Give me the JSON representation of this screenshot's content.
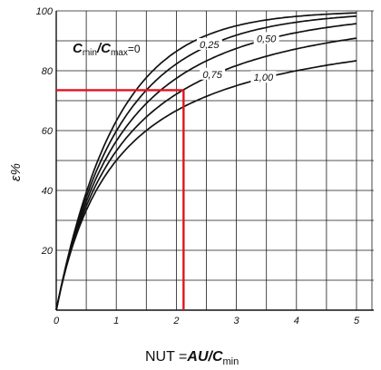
{
  "chart_data": {
    "type": "line",
    "title": "",
    "xlabel": "NUT =AU/C_min",
    "ylabel": "ε%",
    "xlim": [
      0,
      5
    ],
    "ylim": [
      0,
      100
    ],
    "grid": true,
    "x_ticks": [
      "0",
      "1",
      "2",
      "3",
      "4",
      "5"
    ],
    "y_ticks": [
      "20",
      "40",
      "60",
      "80",
      "100"
    ],
    "legend_title": {
      "c1": "C",
      "s1": "min",
      "sep": "/C",
      "s2": "max",
      "eq": "=0"
    },
    "series": [
      {
        "name": "0",
        "label": "C_min/C_max=0",
        "cr": 0.0,
        "x": [
          0,
          0.25,
          0.5,
          0.75,
          1,
          1.5,
          2,
          2.5,
          3,
          4,
          5
        ],
        "y": [
          0,
          22.1,
          39.3,
          52.8,
          63.2,
          77.7,
          86.5,
          91.8,
          95.0,
          98.2,
          99.3
        ]
      },
      {
        "name": "0,25",
        "label": "0,25",
        "cr": 0.25,
        "x": [
          0,
          0.25,
          0.5,
          0.75,
          1,
          1.5,
          2,
          2.5,
          3,
          4,
          5
        ],
        "y": [
          0,
          21.5,
          37.5,
          49.5,
          58.9,
          72.2,
          80.8,
          86.6,
          90.6,
          95.3,
          97.7
        ]
      },
      {
        "name": "0,50",
        "label": "0,50",
        "cr": 0.5,
        "x": [
          0,
          0.25,
          0.5,
          0.75,
          1,
          1.5,
          2,
          2.5,
          3,
          4,
          5
        ],
        "y": [
          0,
          20.9,
          35.7,
          46.8,
          55.4,
          67.4,
          75.3,
          81.0,
          85.3,
          90.9,
          94.3
        ]
      },
      {
        "name": "0,75",
        "label": "0,75",
        "cr": 0.75,
        "x": [
          0,
          0.25,
          0.5,
          0.75,
          1,
          1.5,
          2,
          2.5,
          3,
          4,
          5
        ],
        "y": [
          0,
          20.3,
          34.1,
          44.0,
          51.8,
          62.8,
          70.1,
          75.4,
          79.5,
          85.4,
          89.3
        ]
      },
      {
        "name": "1,00",
        "label": "1,00",
        "cr": 1.0,
        "x": [
          0,
          0.25,
          0.5,
          0.75,
          1,
          1.5,
          2,
          2.5,
          3,
          4,
          5
        ],
        "y": [
          0,
          19.7,
          32.4,
          41.3,
          48.0,
          57.6,
          64.3,
          69.1,
          72.8,
          78.2,
          82.0
        ]
      }
    ],
    "read_off": {
      "x": 2.12,
      "y": 73.5,
      "color": "#e0141e"
    }
  }
}
